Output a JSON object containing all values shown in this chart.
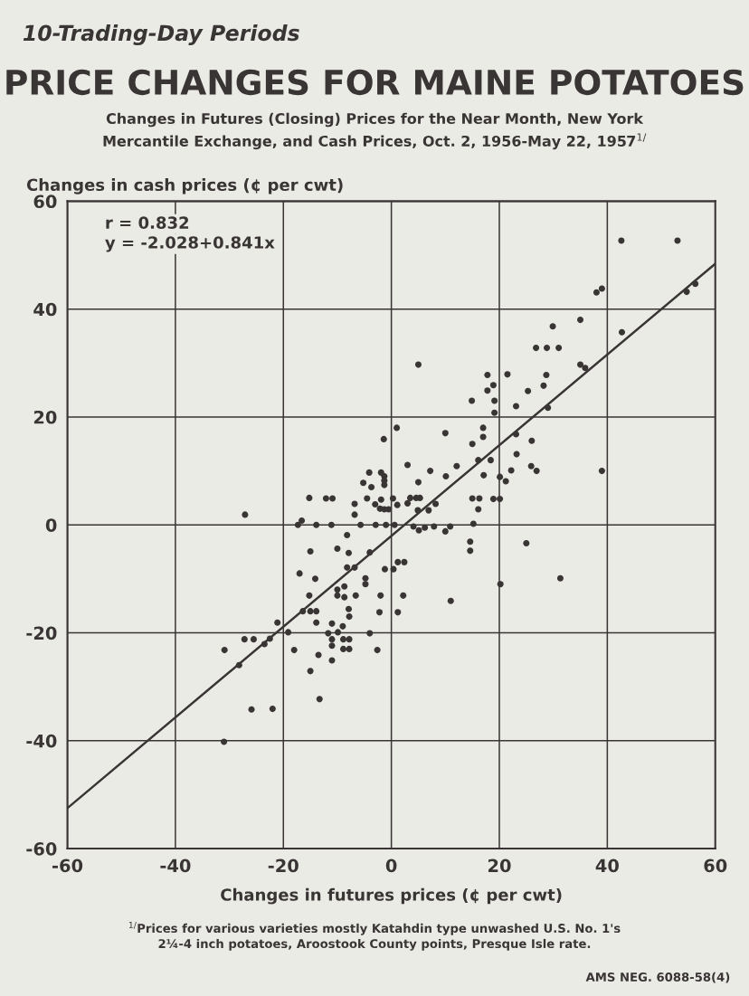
{
  "chart_data": {
    "type": "scatter",
    "title": "PRICE CHANGES FOR MAINE POTATOES",
    "subtitle": "Changes in Futures (Closing) Prices for the Near Month, New York\nMercantile Exchange, and Cash Prices, Oct. 2, 1956-May 22, 1957$^{1/}$",
    "xlabel": "Changes in futures prices (¢ per cwt)",
    "ylabel": "Changes in cash prices (¢ per cwt)",
    "annotations": [
      "10-Trading-Day Periods",
      "r = 0.832",
      "y = -2.028+0.841x",
      "$^{1/}$Prices for various varieties mostly Katahdin type unwashed U.S. No. 1's\n2¼-4 inch potatoes, Aroostook County points, Presque Isle rate.",
      "AMS NEG. 6088-58(4)"
    ],
    "xlim": [
      -60,
      60
    ],
    "ylim": [
      -60,
      60
    ],
    "xticks": [
      -60,
      -40,
      -20,
      0,
      20,
      40,
      60
    ],
    "yticks": [
      -60,
      -40,
      -20,
      0,
      20,
      40,
      60
    ],
    "grid": true,
    "marker": "circle",
    "series": [
      {
        "color": "#3a3535",
        "x": [
          42.6,
          53.0,
          38.0,
          39.0,
          54.7,
          56.3,
          35.0,
          29.9,
          42.7,
          26.8,
          28.8,
          31.0,
          35.0,
          35.9,
          5.0,
          17.8,
          21.5,
          28.7,
          18.9,
          17.8,
          28.2,
          25.3,
          14.9,
          19.1,
          23.1,
          29.0,
          19.1,
          1.0,
          17.0,
          17.0,
          10.0,
          23.1,
          26.0,
          15.0,
          23.2,
          16.1,
          18.4,
          3.0,
          12.1,
          7.2,
          25.9,
          26.9,
          22.2,
          39.0,
          10.1,
          17.1,
          20.1,
          21.2,
          5.0,
          3.0,
          3.5,
          4.6,
          5.3,
          6.9,
          8.2,
          4.9,
          15.0,
          16.3,
          16.1,
          18.9,
          20.1,
          15.2,
          -1.4,
          -4.1,
          -1.9,
          -1.3,
          -1.3,
          -1.3,
          -5.2,
          -3.7,
          -4.5,
          -1.9,
          0.3,
          1.1,
          -3.0,
          -2.1,
          -1.3,
          -0.5,
          -6.8,
          -6.8,
          -15.2,
          -12.1,
          -10.9,
          -27.1,
          -16.6,
          -17.3,
          -13.9,
          -11.1,
          -5.7,
          -2.9,
          -1.0,
          0.6,
          -8.2,
          4.1,
          5.1,
          6.2,
          7.9,
          10.0,
          10.9,
          14.6,
          14.6,
          20.2,
          25.0,
          31.3,
          11.0,
          -15.0,
          -10.0,
          -7.9,
          -4.0,
          -8.2,
          -6.8,
          -17.0,
          -14.1,
          -1.2,
          0.4,
          1.2,
          2.4,
          -4.8,
          -4.8,
          -10.0,
          -10.0,
          -8.7,
          -8.7,
          -6.6,
          -15.2,
          -2.0,
          2.2,
          -16.4,
          -15.0,
          -13.9,
          -7.9,
          -7.8,
          -2.2,
          1.2,
          -13.9,
          -11.0,
          -9.0,
          -9.9,
          -11.0,
          -11.0,
          -8.9,
          -7.8,
          -8.9,
          -7.8,
          -11.7,
          -4.0,
          -2.6,
          -21.1,
          -19.1,
          -22.5,
          -23.5,
          -25.5,
          -27.2,
          -30.9,
          -28.2,
          -18.0,
          -13.5,
          -11.0,
          -15.0,
          -13.3,
          -25.9,
          -22.0,
          -31.0
        ],
        "values": [
          52.7,
          52.7,
          43.1,
          43.8,
          43.2,
          44.7,
          38.0,
          36.8,
          35.7,
          32.8,
          32.8,
          32.8,
          29.7,
          29.1,
          29.7,
          27.8,
          27.9,
          27.8,
          25.9,
          24.9,
          25.8,
          24.8,
          23.0,
          23.0,
          22.0,
          21.7,
          20.8,
          18.0,
          18.0,
          16.3,
          17.0,
          16.8,
          15.6,
          15.0,
          13.1,
          12.0,
          12.0,
          11.1,
          10.9,
          10.0,
          10.9,
          10.0,
          10.1,
          10.0,
          9.0,
          9.2,
          8.9,
          8.1,
          7.9,
          4.0,
          5.0,
          5.0,
          5.0,
          2.7,
          3.9,
          2.7,
          4.9,
          4.9,
          2.9,
          4.8,
          4.8,
          0.2,
          15.9,
          9.7,
          9.7,
          9.0,
          8.2,
          7.4,
          7.8,
          7.0,
          4.9,
          4.7,
          4.9,
          3.7,
          3.8,
          3.0,
          2.9,
          2.9,
          3.9,
          1.9,
          5.0,
          4.9,
          4.9,
          1.9,
          0.8,
          0,
          0,
          0,
          0,
          0,
          0,
          0,
          -1.9,
          -0.3,
          -1.0,
          -0.5,
          -0.3,
          -1.2,
          -0.3,
          -3.1,
          -4.8,
          -11.0,
          -3.4,
          -9.9,
          -14.1,
          -4.9,
          -4.4,
          -5.2,
          -5.1,
          -7.9,
          -7.9,
          -9.0,
          -10.0,
          -8.2,
          -8.2,
          -6.9,
          -6.9,
          -9.9,
          -11.0,
          -12.0,
          -13.1,
          -11.4,
          -13.4,
          -13.1,
          -13.1,
          -13.1,
          -13.1,
          -16.0,
          -16.0,
          -16.0,
          -15.6,
          -17.0,
          -16.2,
          -16.2,
          -18.1,
          -18.3,
          -18.8,
          -19.9,
          -21.2,
          -22.4,
          -21.2,
          -21.2,
          -23.0,
          -23.0,
          -20.1,
          -20.1,
          -23.2,
          -18.1,
          -19.9,
          -21.1,
          -22.1,
          -21.2,
          -21.2,
          -23.2,
          -26.0,
          -23.2,
          -24.1,
          -25.1,
          -27.1,
          -32.3,
          -34.2,
          -34.1,
          -40.2
        ]
      },
      {
        "type": "line",
        "color": "#3a3535",
        "marker": "none",
        "x": [
          -60,
          60
        ],
        "values": [
          -52.5,
          48.4
        ]
      }
    ]
  }
}
